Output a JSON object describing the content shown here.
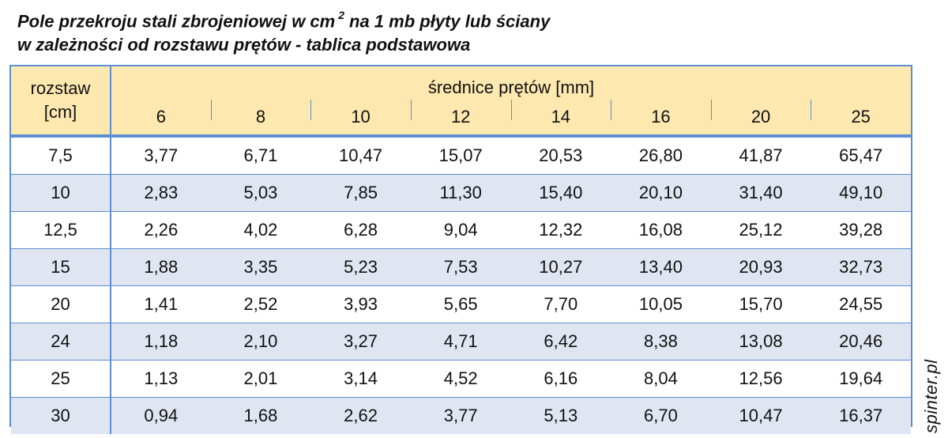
{
  "title": {
    "line1_before_unit": "Pole przekroju stali zbrojeniowej w cm",
    "line1_superscript": "2",
    "line1_after_unit": "na 1 mb płyty lub ściany",
    "line2": "w zależności od rozstawu prętów - tablica podstawowa"
  },
  "table": {
    "spacing_header_line1": "rozstaw",
    "spacing_header_line2": "[cm]",
    "diameters_header": "średnice prętów [mm]",
    "diameters": [
      "6",
      "8",
      "10",
      "12",
      "14",
      "16",
      "20",
      "25"
    ],
    "rows": [
      {
        "spacing": "7,5",
        "values": [
          "3,77",
          "6,71",
          "10,47",
          "15,07",
          "20,53",
          "26,80",
          "41,87",
          "65,47"
        ]
      },
      {
        "spacing": "10",
        "values": [
          "2,83",
          "5,03",
          "7,85",
          "11,30",
          "15,40",
          "20,10",
          "31,40",
          "49,10"
        ]
      },
      {
        "spacing": "12,5",
        "values": [
          "2,26",
          "4,02",
          "6,28",
          "9,04",
          "12,32",
          "16,08",
          "25,12",
          "39,28"
        ]
      },
      {
        "spacing": "15",
        "values": [
          "1,88",
          "3,35",
          "5,23",
          "7,53",
          "10,27",
          "13,40",
          "20,93",
          "32,73"
        ]
      },
      {
        "spacing": "20",
        "values": [
          "1,41",
          "2,52",
          "3,93",
          "5,65",
          "7,70",
          "10,05",
          "15,70",
          "24,55"
        ]
      },
      {
        "spacing": "24",
        "values": [
          "1,18",
          "2,10",
          "3,27",
          "4,71",
          "6,42",
          "8,38",
          "13,08",
          "20,46"
        ]
      },
      {
        "spacing": "25",
        "values": [
          "1,13",
          "2,01",
          "3,14",
          "4,52",
          "6,16",
          "8,04",
          "12,56",
          "19,64"
        ]
      },
      {
        "spacing": "30",
        "values": [
          "0,94",
          "1,68",
          "2,62",
          "3,77",
          "5,13",
          "6,70",
          "10,47",
          "16,37"
        ]
      }
    ]
  },
  "watermark": "spinter.pl",
  "colors": {
    "header_background": "#fde8b0",
    "stripe_background": "#dfe6f1",
    "border": "#5b8fd1"
  }
}
